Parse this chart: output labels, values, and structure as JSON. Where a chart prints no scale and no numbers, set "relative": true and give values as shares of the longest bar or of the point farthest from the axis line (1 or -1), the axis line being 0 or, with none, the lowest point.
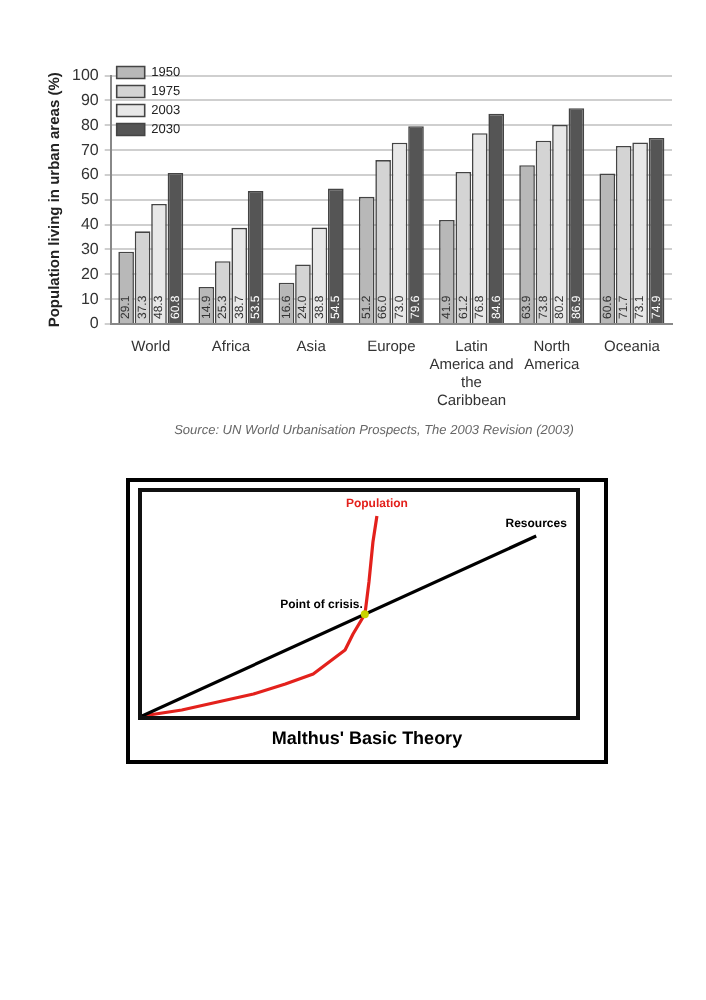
{
  "chart_data": [
    {
      "type": "bar",
      "ylabel": "Population living in urban areas (%)",
      "categories": [
        "World",
        "Africa",
        "Asia",
        "Europe",
        "Latin America and the Caribbean",
        "North America",
        "Oceania"
      ],
      "series": [
        {
          "name": "1950",
          "color": "#b8b8b8",
          "values": [
            29.1,
            14.9,
            16.6,
            51.2,
            41.9,
            63.9,
            60.6
          ],
          "value_labels": [
            "29.1",
            "14.9",
            "16.6",
            "51.2",
            "41.9",
            "63.9",
            "60.6"
          ]
        },
        {
          "name": "1975",
          "color": "#d4d4d4",
          "values": [
            37.3,
            25.3,
            24.0,
            66.0,
            61.2,
            73.8,
            71.7
          ],
          "value_labels": [
            "37.3",
            "25.3",
            "24.0",
            "66.0",
            "61.2",
            "73.8",
            "71.7"
          ]
        },
        {
          "name": "2003",
          "color": "#e8e8e8",
          "values": [
            48.3,
            38.7,
            38.8,
            73.0,
            76.8,
            80.2,
            73.1
          ],
          "value_labels": [
            "48.3",
            "38.7",
            "38.8",
            "73.0",
            "76.8",
            "80.2",
            "73.1"
          ]
        },
        {
          "name": "2030",
          "color": "#555555",
          "values": [
            60.8,
            53.5,
            54.5,
            79.6,
            84.6,
            86.9,
            74.9
          ],
          "value_labels": [
            "60.8",
            "53.5",
            "54.5",
            "79.6",
            "84.6",
            "86.9",
            "74.9"
          ]
        }
      ],
      "ylim": [
        0,
        100
      ],
      "yticks": [
        0,
        10,
        20,
        30,
        40,
        50,
        60,
        70,
        80,
        90,
        100
      ],
      "grid": "y",
      "legend": "top left",
      "annotations": [
        "Source: UN World Urbanisation Prospects, The 2003 Revision (2003)"
      ]
    },
    {
      "type": "line",
      "title": "Malthus' Basic Theory",
      "relative": true,
      "marker": "none",
      "line_style": "solid",
      "categories": [
        null,
        null,
        null,
        null,
        null,
        null,
        null,
        null,
        null,
        null,
        null,
        null,
        null,
        null,
        null,
        null,
        null,
        null,
        null,
        null,
        null,
        null,
        null,
        null,
        null,
        null,
        null,
        null,
        null,
        null,
        null,
        null,
        null,
        null,
        null,
        null,
        null,
        null,
        null,
        null,
        null,
        null,
        null,
        null,
        null,
        null,
        null,
        null,
        null,
        null,
        null,
        null,
        null,
        null,
        null,
        null,
        null,
        null,
        null,
        null,
        null,
        null,
        null,
        null,
        null,
        null,
        null,
        null,
        null,
        null,
        null,
        null,
        null,
        null,
        null,
        null,
        null,
        null,
        null,
        null,
        null,
        null,
        null,
        null,
        null,
        null,
        null,
        null,
        null,
        null,
        null,
        null,
        null,
        null,
        null,
        null,
        null,
        null,
        null,
        null,
        null,
        null,
        null,
        null,
        null,
        null,
        null,
        null,
        null,
        null
      ],
      "series": [
        {
          "name": "Resources",
          "color": "#000000",
          "values": [
            0,
            null,
            null,
            null,
            null,
            null,
            null,
            null,
            null,
            null,
            null,
            null,
            null,
            null,
            null,
            null,
            null,
            null,
            null,
            null,
            null,
            null,
            null,
            null,
            null,
            null,
            null,
            null,
            null,
            null,
            null,
            null,
            null,
            null,
            null,
            null,
            null,
            null,
            null,
            null,
            null,
            null,
            null,
            null,
            null,
            null,
            null,
            null,
            null,
            null,
            null,
            null,
            null,
            null,
            null,
            null,
            null,
            null,
            null,
            null,
            null,
            null,
            null,
            null,
            null,
            null,
            null,
            null,
            null,
            null,
            null,
            null,
            null,
            null,
            null,
            null,
            null,
            null,
            null,
            null,
            null,
            null,
            null,
            null,
            null,
            null,
            null,
            null,
            null,
            null,
            null,
            null,
            null,
            null,
            null,
            null,
            null,
            null,
            null,
            0.9,
            null,
            null,
            null,
            null,
            null,
            null,
            null,
            null,
            null,
            null
          ]
        },
        {
          "name": "Population",
          "color": "#e3211c",
          "values": [
            0,
            null,
            null,
            null,
            null,
            null,
            null,
            null,
            null,
            null,
            0.03,
            null,
            null,
            null,
            null,
            null,
            null,
            null,
            null,
            0.07,
            null,
            null,
            null,
            null,
            null,
            null,
            null,
            null,
            0.11,
            null,
            null,
            null,
            null,
            null,
            null,
            null,
            0.16,
            null,
            null,
            null,
            null,
            null,
            null,
            0.21,
            null,
            null,
            null,
            0.27,
            null,
            null,
            null,
            0.33,
            null,
            0.41,
            null,
            null,
            0.51,
            0.67,
            0.87,
            1,
            null,
            null,
            null,
            null,
            null,
            null,
            null,
            null,
            null,
            null,
            null,
            null,
            null,
            null,
            null,
            null,
            null,
            null,
            null,
            null,
            null,
            null,
            null,
            null,
            null,
            null,
            null,
            null,
            null,
            null,
            null,
            null,
            null,
            null,
            null,
            null,
            null,
            null,
            null,
            null,
            null,
            null,
            null,
            null,
            null,
            null,
            null,
            null,
            null,
            null
          ]
        }
      ],
      "annotations": [
        "Point of crisis."
      ]
    }
  ]
}
